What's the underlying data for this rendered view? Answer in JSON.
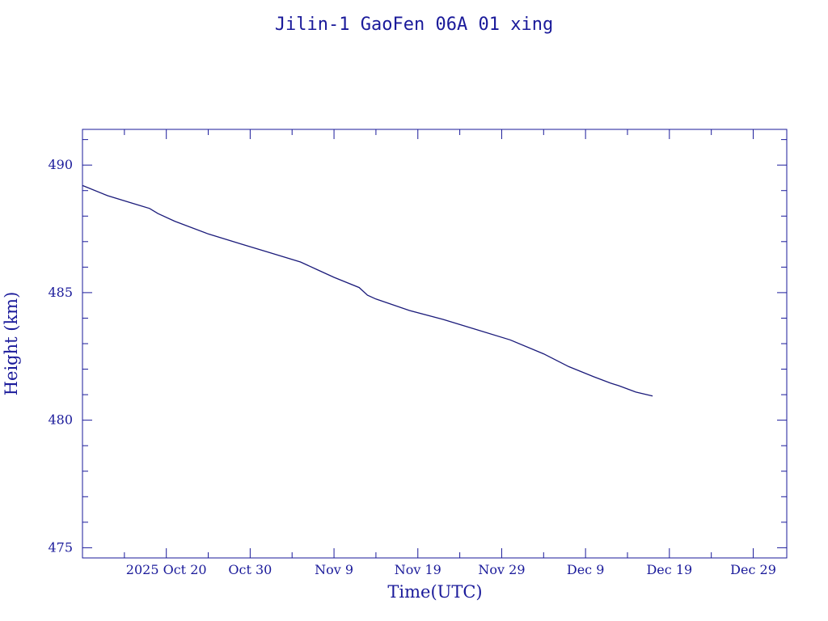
{
  "chart_data": {
    "type": "line",
    "title": "Jilin-1 GaoFen 06A 01 xing",
    "xlabel": "Time(UTC)",
    "ylabel": "Height (km)",
    "x_axis_kind": "date",
    "xlim": [
      "2025-10-10",
      "2026-01-02"
    ],
    "ylim": [
      474.6,
      491.4
    ],
    "x_ticks": [
      {
        "date": "2025-10-20",
        "label": "2025 Oct 20"
      },
      {
        "date": "2025-10-30",
        "label": "Oct 30"
      },
      {
        "date": "2025-11-09",
        "label": "Nov  9"
      },
      {
        "date": "2025-11-19",
        "label": "Nov 19"
      },
      {
        "date": "2025-11-29",
        "label": "Nov 29"
      },
      {
        "date": "2025-12-09",
        "label": "Dec  9"
      },
      {
        "date": "2025-12-19",
        "label": "Dec 19"
      },
      {
        "date": "2025-12-29",
        "label": "Dec 29"
      }
    ],
    "y_ticks": [
      {
        "value": 490,
        "label": "490"
      },
      {
        "value": 485,
        "label": "485"
      },
      {
        "value": 480,
        "label": "480"
      },
      {
        "value": 475,
        "label": "475"
      }
    ],
    "series": [
      {
        "color": "#1a1a7a",
        "points": [
          {
            "x": "2025-10-10",
            "y": 489.2
          },
          {
            "x": "2025-10-13",
            "y": 488.8
          },
          {
            "x": "2025-10-16",
            "y": 488.5
          },
          {
            "x": "2025-10-18",
            "y": 488.3
          },
          {
            "x": "2025-10-19",
            "y": 488.1
          },
          {
            "x": "2025-10-21",
            "y": 487.8
          },
          {
            "x": "2025-10-25",
            "y": 487.3
          },
          {
            "x": "2025-10-29",
            "y": 486.9
          },
          {
            "x": "2025-11-01",
            "y": 486.6
          },
          {
            "x": "2025-11-05",
            "y": 486.2
          },
          {
            "x": "2025-11-07",
            "y": 485.9
          },
          {
            "x": "2025-11-09",
            "y": 485.6
          },
          {
            "x": "2025-11-12",
            "y": 485.2
          },
          {
            "x": "2025-11-13",
            "y": 484.9
          },
          {
            "x": "2025-11-14",
            "y": 484.75
          },
          {
            "x": "2025-11-18",
            "y": 484.3
          },
          {
            "x": "2025-11-22",
            "y": 483.95
          },
          {
            "x": "2025-11-26",
            "y": 483.55
          },
          {
            "x": "2025-11-30",
            "y": 483.15
          },
          {
            "x": "2025-12-04",
            "y": 482.6
          },
          {
            "x": "2025-12-07",
            "y": 482.1
          },
          {
            "x": "2025-12-10",
            "y": 481.7
          },
          {
            "x": "2025-12-12",
            "y": 481.45
          },
          {
            "x": "2025-12-13",
            "y": 481.35
          },
          {
            "x": "2025-12-15",
            "y": 481.1
          },
          {
            "x": "2025-12-17",
            "y": 480.95
          }
        ]
      }
    ],
    "grid": false
  }
}
